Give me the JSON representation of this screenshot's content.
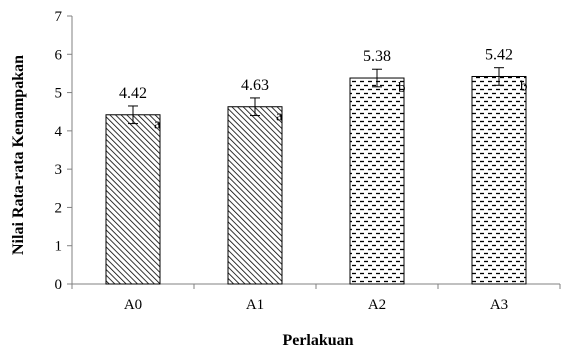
{
  "chart_data": {
    "type": "bar",
    "categories": [
      "A0",
      "A1",
      "A2",
      "A3"
    ],
    "values": [
      4.42,
      4.63,
      5.38,
      5.42
    ],
    "value_labels": [
      "4.42",
      "4.63",
      "5.38",
      "5.42"
    ],
    "error": [
      0.23,
      0.23,
      0.23,
      0.23
    ],
    "significance": [
      "a",
      "a",
      "b",
      "b"
    ],
    "patterns": [
      "diagonal-hatch",
      "diagonal-hatch",
      "horizontal-dash",
      "horizontal-dash"
    ],
    "title": "",
    "xlabel": "Perlakuan",
    "ylabel": "Nilai Rata-rata Kenampakan",
    "ylim": [
      0,
      7
    ],
    "yticks": [
      0,
      1,
      2,
      3,
      4,
      5,
      6,
      7
    ],
    "grid": false,
    "legend": "none",
    "colors": {
      "bar_border": "#000000",
      "pattern": "#000000",
      "axis": "#808080",
      "background": "#ffffff"
    }
  }
}
